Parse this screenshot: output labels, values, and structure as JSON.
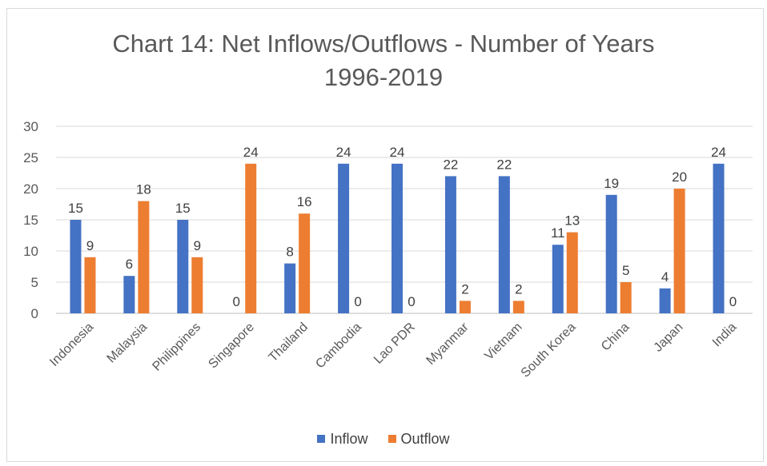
{
  "chart_data": {
    "type": "bar",
    "title_line1": "Chart 14: Net Inflows/Outflows - Number of Years",
    "title_line2": "1996-2019",
    "categories": [
      "Indonesia",
      "Malaysia",
      "Philippines",
      "Singapore",
      "Thailand",
      "Cambodia",
      "Lao PDR",
      "Myanmar",
      "Vietnam",
      "South Korea",
      "China",
      "Japan",
      "India"
    ],
    "series": [
      {
        "name": "Inflow",
        "color": "#4472c4",
        "values": [
          15,
          6,
          15,
          0,
          8,
          24,
          24,
          22,
          22,
          11,
          19,
          4,
          24
        ]
      },
      {
        "name": "Outflow",
        "color": "#ed7d31",
        "values": [
          9,
          18,
          9,
          24,
          16,
          0,
          0,
          2,
          2,
          13,
          5,
          20,
          0
        ]
      }
    ],
    "ylim": [
      0,
      30
    ],
    "yticks": [
      0,
      5,
      10,
      15,
      20,
      25,
      30
    ],
    "grid": true,
    "legend": "bottom"
  }
}
